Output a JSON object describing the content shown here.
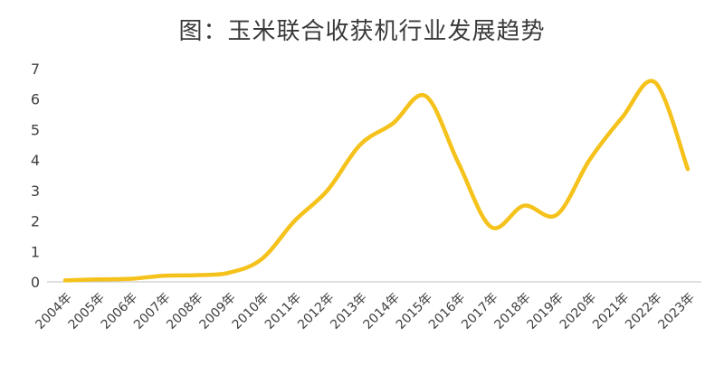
{
  "chart_data": {
    "type": "line",
    "title": "图：玉米联合收获机行业发展趋势",
    "xlabel": "",
    "ylabel": "",
    "categories": [
      "2004年",
      "2005年",
      "2006年",
      "2007年",
      "2008年",
      "2009年",
      "2010年",
      "2011年",
      "2012年",
      "2013年",
      "2014年",
      "2015年",
      "2016年",
      "2017年",
      "2018年",
      "2019年",
      "2020年",
      "2021年",
      "2022年",
      "2023年"
    ],
    "series": [
      {
        "values": [
          0.05,
          0.08,
          0.1,
          0.2,
          0.22,
          0.3,
          0.75,
          2.0,
          3.0,
          4.5,
          5.2,
          6.1,
          3.9,
          1.8,
          2.5,
          2.2,
          4.0,
          5.4,
          6.55,
          3.7
        ]
      }
    ],
    "ylim": [
      0,
      7
    ],
    "yticks": [
      "0",
      "1",
      "2",
      "3",
      "4",
      "5",
      "6",
      "7"
    ],
    "grid": false,
    "line_color": "#F5C21B",
    "axis_color": "#bfbfbf"
  }
}
